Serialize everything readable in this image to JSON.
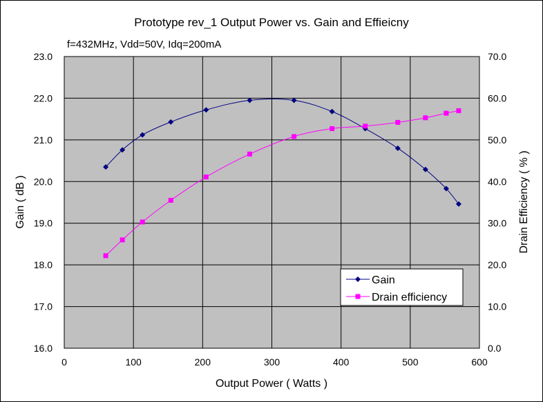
{
  "chart_data": {
    "type": "line",
    "title": "Prototype rev_1 Output Power vs. Gain and Effieicny",
    "subtitle": "f=432MHz, Vdd=50V, Idq=200mA",
    "xlabel": "Output Power ( Watts )",
    "ylabel_left": "Gain ( dB )",
    "ylabel_right": "Drain Efficiency ( % )",
    "xlim": [
      0,
      600
    ],
    "ylim_left": [
      16.0,
      23.0
    ],
    "ylim_right": [
      0.0,
      70.0
    ],
    "x_ticks": [
      "0",
      "100",
      "200",
      "300",
      "400",
      "500",
      "600"
    ],
    "y_left_ticks": [
      "16.0",
      "17.0",
      "18.0",
      "19.0",
      "20.0",
      "21.0",
      "22.0",
      "23.0"
    ],
    "y_right_ticks": [
      "0.0",
      "10.0",
      "20.0",
      "30.0",
      "40.0",
      "50.0",
      "60.0",
      "70.0"
    ],
    "grid": true,
    "plot_background": "#c0c0c0",
    "legend_position": "bottom-right",
    "series": [
      {
        "name": "Gain",
        "axis": "left",
        "color": "#000080",
        "marker": "diamond",
        "x": [
          60,
          84,
          113,
          154,
          205,
          268,
          332,
          387,
          435,
          482,
          522,
          552,
          570
        ],
        "y": [
          20.35,
          20.76,
          21.12,
          21.43,
          21.72,
          21.95,
          21.95,
          21.68,
          21.27,
          20.8,
          20.29,
          19.83,
          19.46
        ]
      },
      {
        "name": "Drain efficiency",
        "axis": "right",
        "color": "#ff00ff",
        "marker": "square",
        "x": [
          60,
          84,
          113,
          154,
          205,
          268,
          332,
          387,
          435,
          482,
          522,
          552,
          570
        ],
        "y": [
          22.2,
          26.0,
          30.3,
          35.5,
          41.1,
          46.6,
          50.8,
          52.7,
          53.3,
          54.2,
          55.3,
          56.4,
          57.0
        ]
      }
    ]
  }
}
